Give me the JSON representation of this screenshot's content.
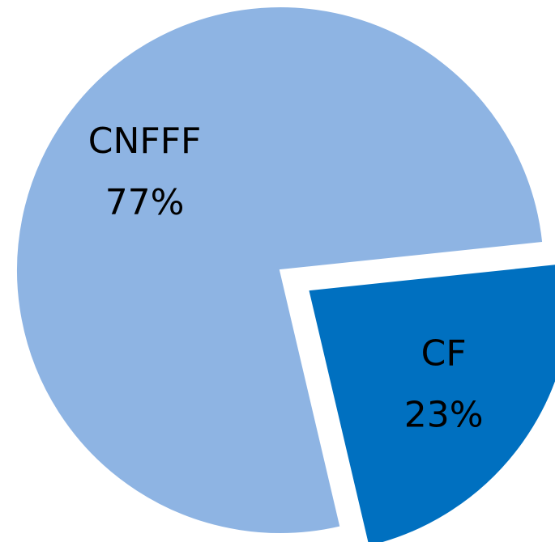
{
  "chart_data": {
    "type": "pie",
    "categories": [
      "CNFFF",
      "CF"
    ],
    "values": [
      77,
      23
    ],
    "value_labels": [
      "77%",
      "23%"
    ],
    "colors": [
      "#8eb4e3",
      "#0070c0"
    ]
  }
}
